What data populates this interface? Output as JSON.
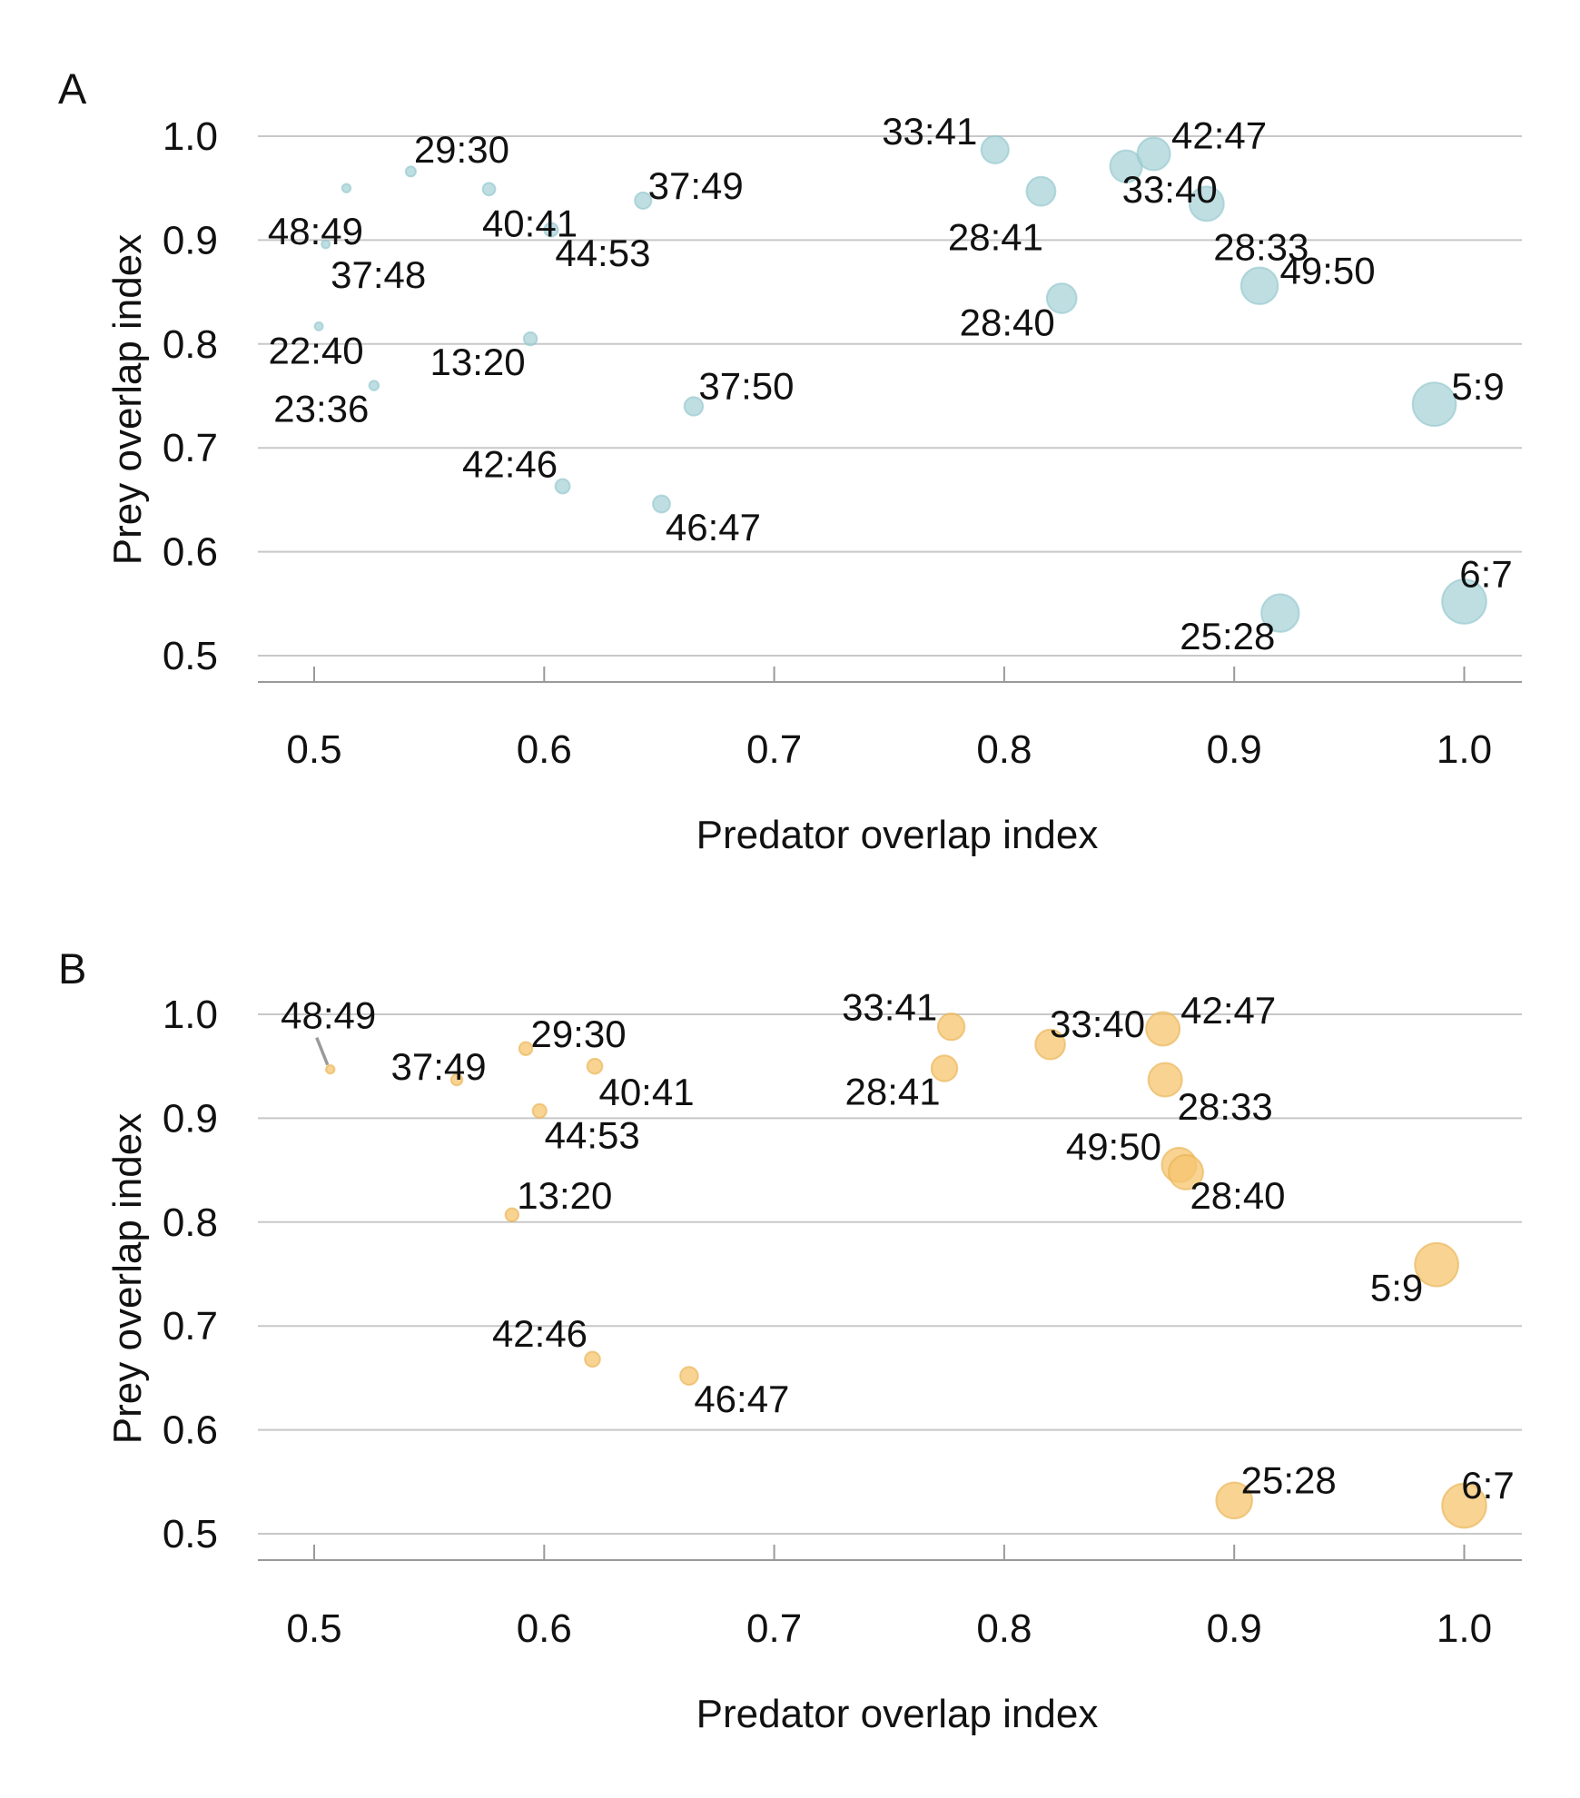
{
  "colors": {
    "panel_a": "#a8d3d8",
    "panel_b": "#f5c46d"
  },
  "chart_data": [
    {
      "panel": "A",
      "type": "scatter",
      "xlabel": "Predator overlap index",
      "ylabel": "Prey overlap index",
      "xlim": [
        0.475,
        1.025
      ],
      "ylim": [
        0.475,
        1.025
      ],
      "xticks": [
        "0.5",
        "0.6",
        "0.7",
        "0.8",
        "0.9",
        "1.0"
      ],
      "yticks": [
        "0.5",
        "0.6",
        "0.7",
        "0.8",
        "0.9",
        "1.0"
      ],
      "grid": "horizontal",
      "points": [
        {
          "label": "33:41",
          "x": 0.796,
          "y": 0.987,
          "size": 0.79
        },
        {
          "label": "42:47",
          "x": 0.865,
          "y": 0.983,
          "size": 0.86
        },
        {
          "label": "33:40",
          "x": 0.853,
          "y": 0.971,
          "size": 0.85
        },
        {
          "label": "28:41",
          "x": 0.816,
          "y": 0.947,
          "size": 0.81
        },
        {
          "label": "28:33",
          "x": 0.888,
          "y": 0.935,
          "size": 0.88
        },
        {
          "label": "49:50",
          "x": 0.911,
          "y": 0.856,
          "size": 0.91
        },
        {
          "label": "28:40",
          "x": 0.825,
          "y": 0.844,
          "size": 0.82
        },
        {
          "label": "5:9",
          "x": 0.987,
          "y": 0.742,
          "size": 0.99
        },
        {
          "label": "6:7",
          "x": 1.0,
          "y": 0.552,
          "size": 1.0
        },
        {
          "label": "25:28",
          "x": 0.92,
          "y": 0.541,
          "size": 0.92
        },
        {
          "label": "29:30",
          "x": 0.542,
          "y": 0.966,
          "size": 0.54
        },
        {
          "label": "48:49",
          "x": 0.514,
          "y": 0.95,
          "size": 0.51
        },
        {
          "label": "40:41",
          "x": 0.576,
          "y": 0.949,
          "size": 0.58
        },
        {
          "label": "37:49",
          "x": 0.643,
          "y": 0.938,
          "size": 0.64
        },
        {
          "label": "44:53",
          "x": 0.603,
          "y": 0.91,
          "size": 0.6
        },
        {
          "label": "37:48",
          "x": 0.505,
          "y": 0.896,
          "size": 0.5
        },
        {
          "label": "22:40",
          "x": 0.502,
          "y": 0.817,
          "size": 0.5
        },
        {
          "label": "13:20",
          "x": 0.594,
          "y": 0.805,
          "size": 0.59
        },
        {
          "label": "23:36",
          "x": 0.526,
          "y": 0.76,
          "size": 0.53
        },
        {
          "label": "37:50",
          "x": 0.665,
          "y": 0.74,
          "size": 0.67
        },
        {
          "label": "42:46",
          "x": 0.608,
          "y": 0.663,
          "size": 0.61
        },
        {
          "label": "46:47",
          "x": 0.651,
          "y": 0.646,
          "size": 0.65
        }
      ]
    },
    {
      "panel": "B",
      "type": "scatter",
      "xlabel": "Predator overlap index",
      "ylabel": "Prey overlap index",
      "xlim": [
        0.475,
        1.025
      ],
      "ylim": [
        0.475,
        1.025
      ],
      "xticks": [
        "0.5",
        "0.6",
        "0.7",
        "0.8",
        "0.9",
        "1.0"
      ],
      "yticks": [
        "0.5",
        "0.6",
        "0.7",
        "0.8",
        "0.9",
        "1.0"
      ],
      "grid": "horizontal",
      "points": [
        {
          "label": "48:49",
          "x": 0.507,
          "y": 0.947,
          "size": 0.51
        },
        {
          "label": "37:49",
          "x": 0.562,
          "y": 0.937,
          "size": 0.56
        },
        {
          "label": "29:30",
          "x": 0.592,
          "y": 0.967,
          "size": 0.59
        },
        {
          "label": "40:41",
          "x": 0.622,
          "y": 0.95,
          "size": 0.62
        },
        {
          "label": "44:53",
          "x": 0.598,
          "y": 0.907,
          "size": 0.6
        },
        {
          "label": "13:20",
          "x": 0.586,
          "y": 0.807,
          "size": 0.59
        },
        {
          "label": "42:46",
          "x": 0.621,
          "y": 0.668,
          "size": 0.62
        },
        {
          "label": "46:47",
          "x": 0.663,
          "y": 0.652,
          "size": 0.66
        },
        {
          "label": "33:41",
          "x": 0.777,
          "y": 0.988,
          "size": 0.78
        },
        {
          "label": "28:41",
          "x": 0.774,
          "y": 0.948,
          "size": 0.77
        },
        {
          "label": "33:40",
          "x": 0.82,
          "y": 0.971,
          "size": 0.82
        },
        {
          "label": "42:47",
          "x": 0.869,
          "y": 0.986,
          "size": 0.87
        },
        {
          "label": "28:33",
          "x": 0.87,
          "y": 0.937,
          "size": 0.87
        },
        {
          "label": "49:50",
          "x": 0.876,
          "y": 0.855,
          "size": 0.88
        },
        {
          "label": "28:40",
          "x": 0.879,
          "y": 0.848,
          "size": 0.88
        },
        {
          "label": "5:9",
          "x": 0.988,
          "y": 0.759,
          "size": 0.99
        },
        {
          "label": "25:28",
          "x": 0.9,
          "y": 0.532,
          "size": 0.9
        },
        {
          "label": "6:7",
          "x": 1.0,
          "y": 0.527,
          "size": 1.0
        }
      ]
    }
  ]
}
